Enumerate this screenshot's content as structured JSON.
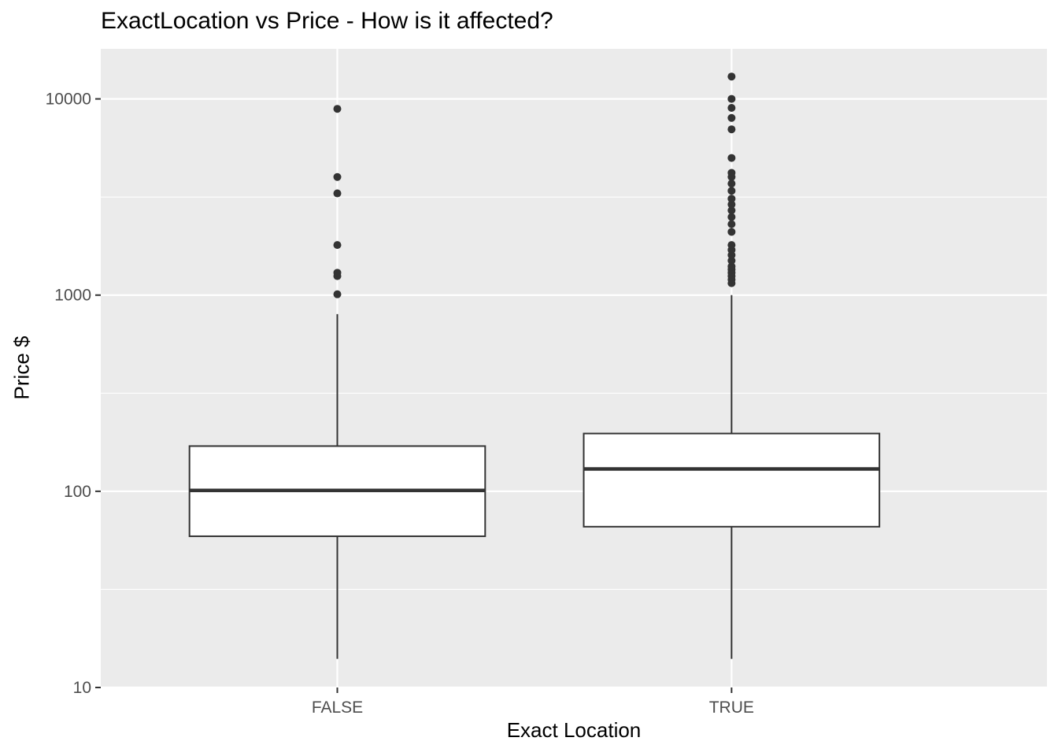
{
  "chart_data": {
    "type": "box",
    "title": "ExactLocation vs Price - How is it affected?",
    "xlabel": "Exact Location",
    "ylabel": "Price $",
    "y_scale": "log10",
    "ylim": [
      10,
      18000
    ],
    "y_ticks": [
      10,
      100,
      1000,
      10000
    ],
    "y_tick_labels": [
      "10",
      "100",
      "1000",
      "10000"
    ],
    "categories": [
      "FALSE",
      "TRUE"
    ],
    "boxes": [
      {
        "category": "FALSE",
        "whisker_low": 14,
        "q1": 59,
        "median": 101,
        "q3": 170,
        "whisker_high": 800,
        "outliers": [
          1010,
          1250,
          1300,
          1800,
          3300,
          4000,
          8900
        ]
      },
      {
        "category": "TRUE",
        "whisker_low": 14,
        "q1": 66,
        "median": 130,
        "q3": 197,
        "whisker_high": 1000,
        "outliers": [
          1150,
          1200,
          1250,
          1300,
          1350,
          1400,
          1500,
          1600,
          1700,
          1800,
          2100,
          2300,
          2500,
          2700,
          2900,
          3100,
          3400,
          3700,
          4000,
          4200,
          5000,
          7000,
          8000,
          9000,
          10000,
          13000
        ]
      }
    ],
    "grid": true,
    "legend": "none",
    "colors": {
      "panel_background": "#ebebeb",
      "grid": "#ffffff",
      "box_fill": "#ffffff",
      "box_line": "#333333",
      "point": "#333333",
      "tick_text": "#4d4d4d"
    }
  }
}
